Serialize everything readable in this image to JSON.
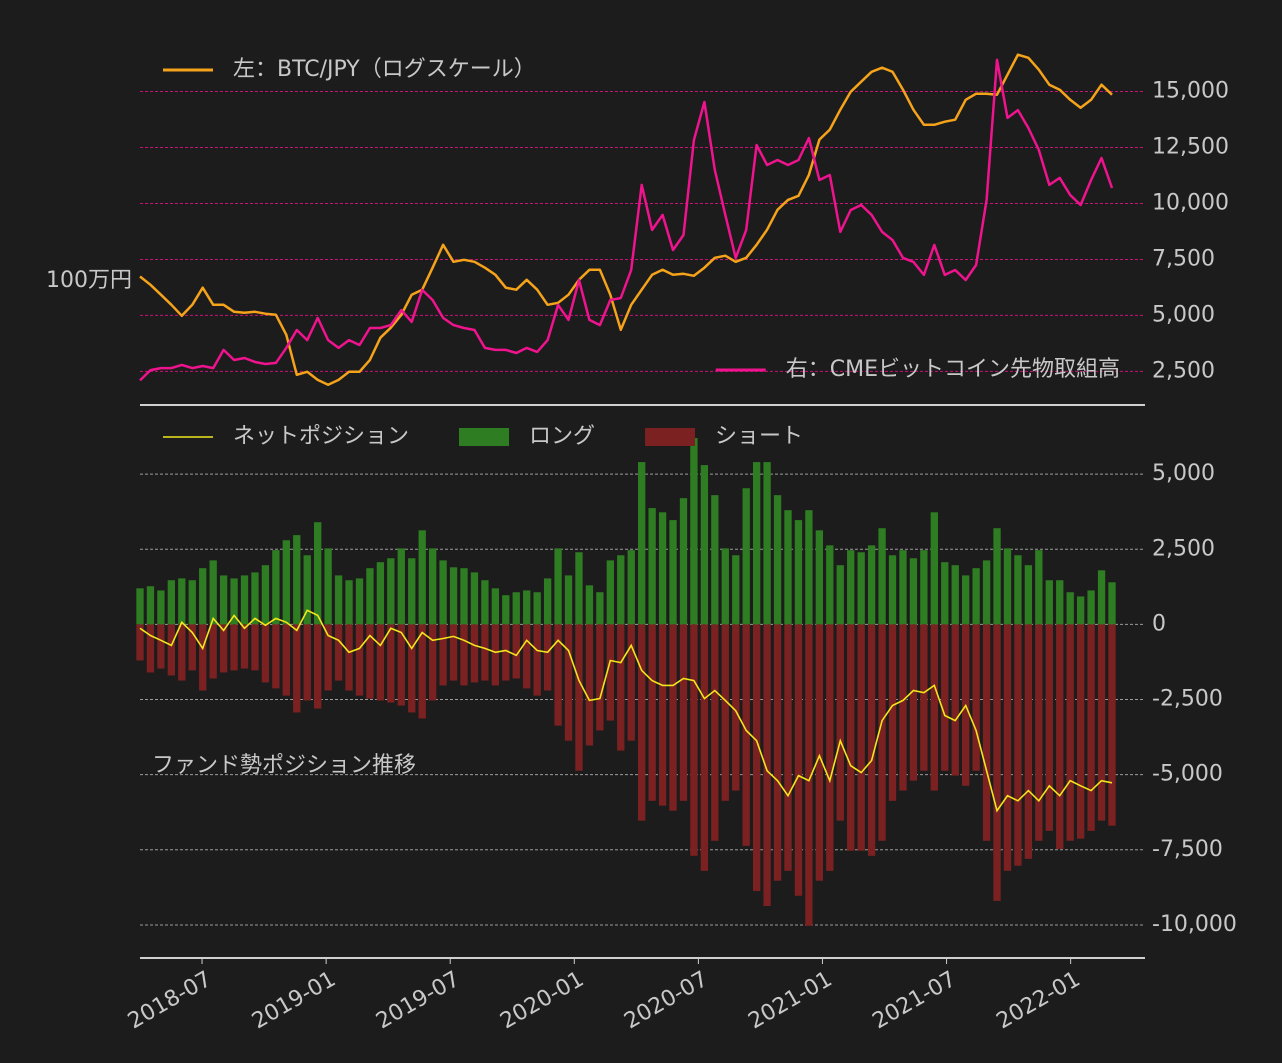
{
  "chart_data": [
    {
      "type": "line",
      "ylog": true,
      "ylim": [
        320000,
        9100000
      ],
      "yticks": [
        {
          "value": 1000000,
          "label": "100万円"
        }
      ],
      "y2lim": [
        1000,
        17300
      ],
      "y2ticks": [
        {
          "value": 2500,
          "label": "2,500"
        },
        {
          "value": 5000,
          "label": "5,000"
        },
        {
          "value": 7500,
          "label": "7,500"
        },
        {
          "value": 10000,
          "label": "10,000"
        },
        {
          "value": 12500,
          "label": "12,500"
        },
        {
          "value": 15000,
          "label": "15,000"
        }
      ],
      "grid": true,
      "series": [
        {
          "name": "左：BTC/JPY（ログスケール）",
          "color": "#f5a31a",
          "axis": "y",
          "values": [
            1040000,
            964000,
            880000,
            802000,
            725000,
            802000,
            938000,
            802000,
            802000,
            752000,
            746000,
            752000,
            739000,
            732000,
            609000,
            422000,
            434000,
            403000,
            385000,
            403000,
            434000,
            434000,
            484000,
            593000,
            650000,
            732000,
            880000,
            921000,
            1127000,
            1391000,
            1190000,
            1212000,
            1190000,
            1127000,
            1056000,
            938000,
            921000,
            1009000,
            921000,
            802000,
            817000,
            880000,
            1009000,
            1106000,
            1106000,
            880000,
            638000,
            802000,
            921000,
            1056000,
            1106000,
            1056000,
            1066000,
            1047000,
            1127000,
            1235000,
            1258000,
            1190000,
            1235000,
            1391000,
            1597000,
            1918000,
            2100000,
            2180000,
            2640000,
            3650000,
            4000000,
            4800000,
            5660000,
            6210000,
            6800000,
            7060000,
            6800000,
            5770000,
            4800000,
            4180000,
            4180000,
            4300000,
            4380000,
            5260000,
            5560000,
            5560000,
            5510000,
            6620000,
            7950000,
            7730000,
            6930000,
            6040000,
            5770000,
            5260000,
            4890000,
            5260000,
            6040000,
            5510000
          ]
        },
        {
          "name": "右：CMEビットコイン先物取組高",
          "color": "#f0138e",
          "axis": "y2",
          "values": [
            2100,
            2560,
            2650,
            2650,
            2790,
            2650,
            2740,
            2650,
            3460,
            3010,
            3100,
            2920,
            2830,
            2880,
            3550,
            4350,
            3900,
            4890,
            3900,
            3550,
            3900,
            3680,
            4440,
            4440,
            4570,
            5240,
            4710,
            6140,
            5690,
            4890,
            4570,
            4440,
            4350,
            3550,
            3460,
            3460,
            3320,
            3550,
            3370,
            3900,
            5470,
            4800,
            6580,
            4800,
            4570,
            5690,
            5780,
            7030,
            10830,
            8820,
            9490,
            7920,
            8590,
            12830,
            14530,
            11500,
            9490,
            7570,
            8820,
            12610,
            11720,
            11940,
            11720,
            11940,
            12920,
            11050,
            11270,
            8730,
            9710,
            9930,
            9490,
            8730,
            8370,
            7570,
            7390,
            6810,
            8150,
            6810,
            7030,
            6580,
            7250,
            10160,
            16410,
            13820,
            14170,
            13370,
            12390,
            10830,
            11140,
            10380,
            9930,
            11050,
            12030,
            10690
          ]
        }
      ]
    },
    {
      "type": "bar",
      "annotation": "ファンド勢ポジション推移",
      "ylim": [
        -11100,
        7300
      ],
      "yticks": [
        {
          "value": -10000,
          "label": "-10,000"
        },
        {
          "value": -7500,
          "label": "-7,500"
        },
        {
          "value": -5000,
          "label": "-5,000"
        },
        {
          "value": -2500,
          "label": "-2,500"
        },
        0,
        {
          "value": 2500,
          "label": "2,500"
        },
        {
          "value": 5000,
          "label": "5,000"
        }
      ],
      "xlim": [
        "2018-04",
        "2022-03"
      ],
      "xticks": [
        "2018-07",
        "2019-01",
        "2019-07",
        "2020-01",
        "2020-07",
        "2021-01",
        "2021-07",
        "2022-01"
      ],
      "grid": true,
      "series": [
        {
          "name": "ネットポジション",
          "type": "line",
          "color": "#f2e61c",
          "values": [
            -130,
            -370,
            -530,
            -700,
            70,
            -270,
            -800,
            200,
            -200,
            300,
            -130,
            200,
            -30,
            200,
            70,
            -200,
            470,
            300,
            -370,
            -530,
            -930,
            -800,
            -370,
            -700,
            -130,
            -270,
            -800,
            -270,
            -530,
            -470,
            -400,
            -530,
            -700,
            -800,
            -930,
            -870,
            -1030,
            -530,
            -870,
            -930,
            -530,
            -870,
            -1870,
            -2530,
            -2470,
            -1200,
            -1270,
            -700,
            -1530,
            -1870,
            -2030,
            -2030,
            -1800,
            -1870,
            -2470,
            -2200,
            -2530,
            -2870,
            -3530,
            -3870,
            -4870,
            -5200,
            -5700,
            -5030,
            -5200,
            -4370,
            -5200,
            -3870,
            -4700,
            -4930,
            -4530,
            -3200,
            -2700,
            -2530,
            -2200,
            -2270,
            -2030,
            -3030,
            -3200,
            -2700,
            -3530,
            -4870,
            -6200,
            -5700,
            -5870,
            -5530,
            -5870,
            -5370,
            -5700,
            -5200,
            -5370,
            -5530,
            -5200,
            -5270
          ]
        },
        {
          "name": "ロング",
          "type": "bar",
          "color": "#2f7d23",
          "values": [
            1200,
            1270,
            1130,
            1470,
            1530,
            1470,
            1870,
            2130,
            1630,
            1530,
            1630,
            1730,
            1970,
            2470,
            2800,
            2970,
            2300,
            3400,
            2530,
            1630,
            1470,
            1530,
            1870,
            2070,
            2200,
            2530,
            2200,
            3130,
            2530,
            2130,
            1900,
            1870,
            1730,
            1470,
            1200,
            970,
            1070,
            1130,
            1070,
            1530,
            2530,
            1630,
            2400,
            1300,
            1070,
            2130,
            2300,
            2470,
            5400,
            3870,
            3730,
            3470,
            4200,
            6200,
            5300,
            4300,
            2530,
            2300,
            4530,
            5400,
            5400,
            4300,
            3800,
            3470,
            3800,
            3130,
            2630,
            1970,
            2470,
            2400,
            2630,
            3200,
            2300,
            2470,
            2200,
            2470,
            3730,
            2070,
            1970,
            1630,
            1870,
            2130,
            3200,
            2530,
            2300,
            1970,
            2470,
            1470,
            1470,
            1070,
            930,
            1130,
            1800,
            1400
          ]
        },
        {
          "name": "ショート",
          "type": "bar",
          "color": "#7b2121",
          "values": [
            -1200,
            -1600,
            -1470,
            -1700,
            -1870,
            -1530,
            -2200,
            -1800,
            -1600,
            -1530,
            -1470,
            -1530,
            -1930,
            -2130,
            -2370,
            -2930,
            -2530,
            -2800,
            -2200,
            -1870,
            -2200,
            -2370,
            -2470,
            -2530,
            -2600,
            -2700,
            -2930,
            -3130,
            -2530,
            -2030,
            -1870,
            -2030,
            -1930,
            -1870,
            -2030,
            -1870,
            -1800,
            -2130,
            -2370,
            -2200,
            -3370,
            -3870,
            -4870,
            -4030,
            -3530,
            -3200,
            -4200,
            -3870,
            -6530,
            -5870,
            -6030,
            -6200,
            -5870,
            -7700,
            -8200,
            -7200,
            -5870,
            -5530,
            -7370,
            -8870,
            -9370,
            -8530,
            -8200,
            -9030,
            -10030,
            -8530,
            -8200,
            -6530,
            -7530,
            -7530,
            -7700,
            -7200,
            -5870,
            -5530,
            -5200,
            -4870,
            -5530,
            -4870,
            -5030,
            -5370,
            -4870,
            -7200,
            -9200,
            -8200,
            -8030,
            -7800,
            -7200,
            -6870,
            -7470,
            -7200,
            -7130,
            -6870,
            -6530,
            -6700
          ]
        }
      ]
    }
  ]
}
